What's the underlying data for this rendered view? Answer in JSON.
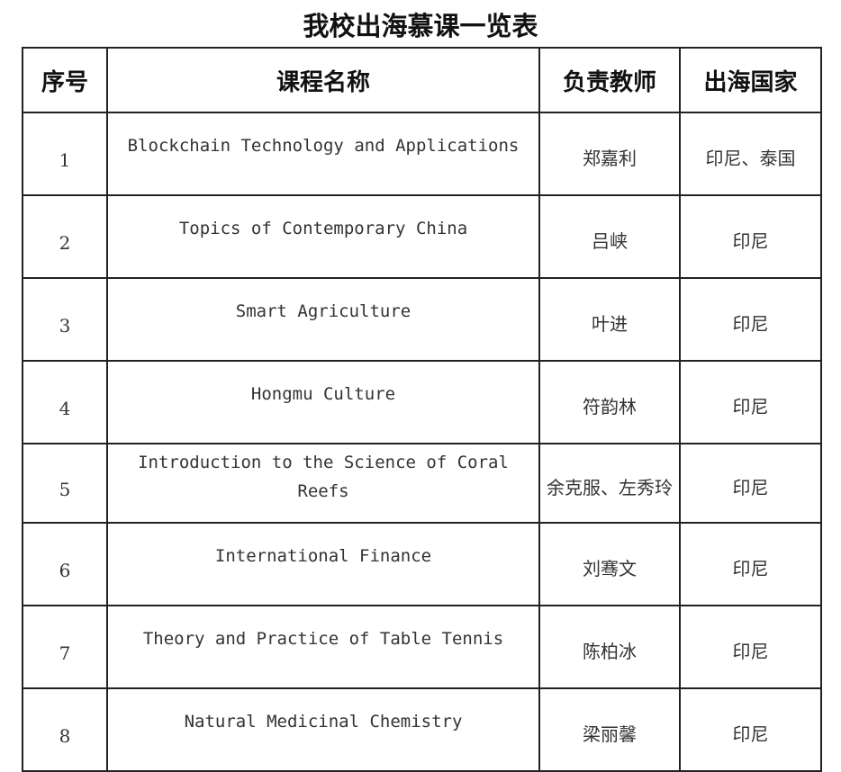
{
  "title": "我校出海慕课一览表",
  "table": {
    "headers": [
      "序号",
      "课程名称",
      "负责教师",
      "出海国家"
    ],
    "rows": [
      {
        "no": "1",
        "course": "Blockchain Technology and Applications",
        "teacher": "郑嘉利",
        "country": "印尼、泰国"
      },
      {
        "no": "2",
        "course": "Topics of Contemporary China",
        "teacher": "吕峡",
        "country": "印尼"
      },
      {
        "no": "3",
        "course": "Smart Agriculture",
        "teacher": "叶进",
        "country": "印尼"
      },
      {
        "no": "4",
        "course": "Hongmu Culture",
        "teacher": "符韵林",
        "country": "印尼"
      },
      {
        "no": "5",
        "course": "Introduction to the Science of Coral Reefs",
        "teacher": "余克服、左秀玲",
        "country": "印尼"
      },
      {
        "no": "6",
        "course": "International Finance",
        "teacher": "刘骞文",
        "country": "印尼"
      },
      {
        "no": "7",
        "course": "Theory and Practice of Table Tennis",
        "teacher": "陈柏冰",
        "country": "印尼"
      },
      {
        "no": "8",
        "course": "Natural Medicinal Chemistry",
        "teacher": "梁丽馨",
        "country": "印尼"
      }
    ]
  }
}
